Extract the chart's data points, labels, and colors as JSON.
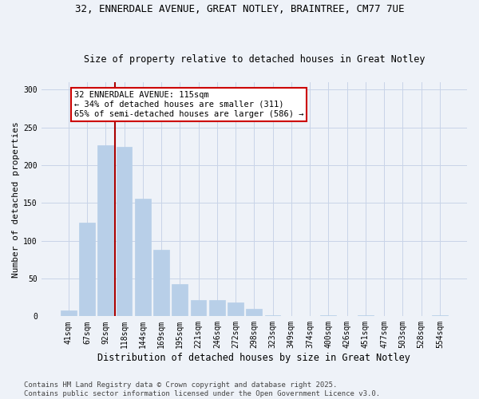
{
  "title_line1": "32, ENNERDALE AVENUE, GREAT NOTLEY, BRAINTREE, CM77 7UE",
  "title_line2": "Size of property relative to detached houses in Great Notley",
  "xlabel": "Distribution of detached houses by size in Great Notley",
  "ylabel": "Number of detached properties",
  "categories": [
    "41sqm",
    "67sqm",
    "92sqm",
    "118sqm",
    "144sqm",
    "169sqm",
    "195sqm",
    "221sqm",
    "246sqm",
    "272sqm",
    "298sqm",
    "323sqm",
    "349sqm",
    "374sqm",
    "400sqm",
    "426sqm",
    "451sqm",
    "477sqm",
    "503sqm",
    "528sqm",
    "554sqm"
  ],
  "values": [
    8,
    124,
    226,
    224,
    156,
    88,
    43,
    21,
    21,
    18,
    10,
    1,
    0,
    0,
    1,
    0,
    1,
    0,
    0,
    0,
    1
  ],
  "bar_color": "#b8cfe8",
  "bar_edgecolor": "#b8cfe8",
  "grid_color": "#c8d4e8",
  "background_color": "#eef2f8",
  "vline_color": "#aa0000",
  "annotation_text": "32 ENNERDALE AVENUE: 115sqm\n← 34% of detached houses are smaller (311)\n65% of semi-detached houses are larger (586) →",
  "annotation_box_color": "#ffffff",
  "annotation_box_edgecolor": "#cc0000",
  "ylim": [
    0,
    310
  ],
  "yticks": [
    0,
    50,
    100,
    150,
    200,
    250,
    300
  ],
  "footnote_line1": "Contains HM Land Registry data © Crown copyright and database right 2025.",
  "footnote_line2": "Contains public sector information licensed under the Open Government Licence v3.0.",
  "title_fontsize": 9,
  "subtitle_fontsize": 8.5,
  "axis_label_fontsize": 8.5,
  "ylabel_fontsize": 8,
  "tick_fontsize": 7,
  "annotation_fontsize": 7.5,
  "footnote_fontsize": 6.5
}
